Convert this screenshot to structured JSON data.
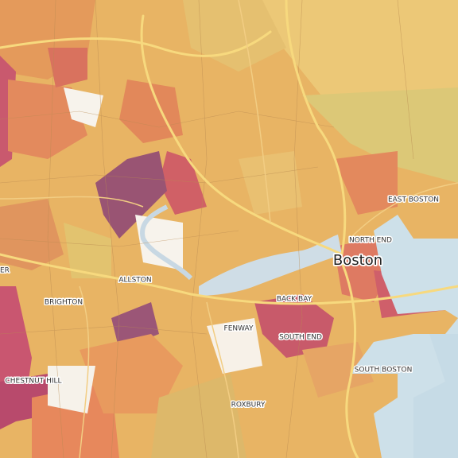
{
  "map": {
    "labels": [
      "ER",
      "ALLSTON",
      "BRIGHTON",
      "BACK BAY",
      "FENWAY",
      "SOUTH END",
      "NORTH END",
      "Boston",
      "EAST BOSTON",
      "SOUTH BOSTON",
      "CHESTNUT HILL",
      "ROXBURY"
    ]
  }
}
